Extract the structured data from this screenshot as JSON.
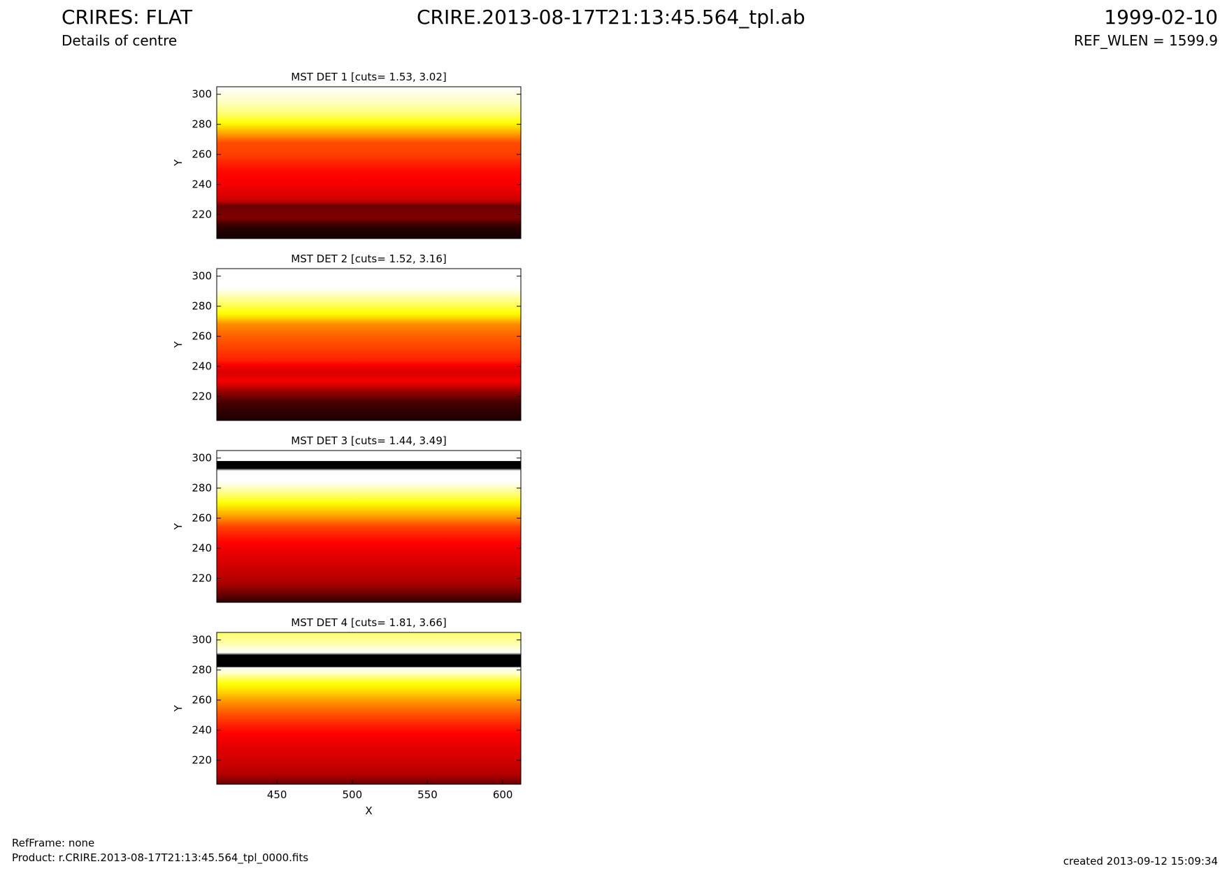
{
  "header": {
    "title": "CRIRES: FLAT",
    "subtitle": "Details of centre",
    "file_name": "CRIRE.2013-08-17T21:13:45.564_tpl.ab",
    "date": "1999-02-10",
    "ref_wlen": "REF_WLEN = 1599.9"
  },
  "footer": {
    "ref_frame": "RefFrame: none",
    "product": "Product: r.CRIRE.2013-08-17T21:13:45.564_tpl_0000.fits",
    "created": "created 2013-09-12 15:09:34"
  },
  "colormap": {
    "name": "hot",
    "stops": [
      "#000000",
      "#b00000",
      "#ff0000",
      "#ff8000",
      "#ffff00",
      "#ffffff"
    ]
  },
  "chart_data": [
    {
      "type": "heatmap",
      "title": "MST DET 1 [cuts= 1.53, 3.02]",
      "xlabel": "",
      "ylabel": "Y",
      "xlim": [
        410,
        612
      ],
      "ylim": [
        204,
        305
      ],
      "xticks": [],
      "yticks": [
        220,
        240,
        260,
        280,
        300
      ],
      "profile": [
        [
          204,
          0.02
        ],
        [
          212,
          0.05
        ],
        [
          218,
          0.15
        ],
        [
          226,
          0.12
        ],
        [
          230,
          0.28
        ],
        [
          240,
          0.38
        ],
        [
          250,
          0.42
        ],
        [
          260,
          0.5
        ],
        [
          268,
          0.52
        ],
        [
          276,
          0.7
        ],
        [
          282,
          0.82
        ],
        [
          288,
          0.9
        ],
        [
          296,
          0.96
        ],
        [
          305,
          1.0
        ]
      ],
      "bands": []
    },
    {
      "type": "heatmap",
      "title": "MST DET 2 [cuts= 1.52, 3.16]",
      "xlabel": "",
      "ylabel": "Y",
      "xlim": [
        410,
        612
      ],
      "ylim": [
        204,
        305
      ],
      "xticks": [],
      "yticks": [
        220,
        240,
        260,
        280,
        300
      ],
      "profile": [
        [
          204,
          0.03
        ],
        [
          216,
          0.08
        ],
        [
          224,
          0.18
        ],
        [
          230,
          0.38
        ],
        [
          236,
          0.3
        ],
        [
          244,
          0.45
        ],
        [
          252,
          0.5
        ],
        [
          260,
          0.55
        ],
        [
          268,
          0.62
        ],
        [
          274,
          0.78
        ],
        [
          280,
          0.86
        ],
        [
          286,
          0.93
        ],
        [
          292,
          1.0
        ],
        [
          305,
          1.0
        ]
      ],
      "bands": []
    },
    {
      "type": "heatmap",
      "title": "MST DET 3 [cuts= 1.44, 3.49]",
      "xlabel": "",
      "ylabel": "Y",
      "xlim": [
        410,
        612
      ],
      "ylim": [
        204,
        305
      ],
      "xticks": [],
      "yticks": [
        220,
        240,
        260,
        280,
        300
      ],
      "profile": [
        [
          204,
          0.05
        ],
        [
          212,
          0.15
        ],
        [
          220,
          0.22
        ],
        [
          230,
          0.3
        ],
        [
          238,
          0.35
        ],
        [
          246,
          0.42
        ],
        [
          254,
          0.5
        ],
        [
          262,
          0.66
        ],
        [
          270,
          0.8
        ],
        [
          278,
          0.92
        ],
        [
          284,
          1.0
        ],
        [
          292,
          1.0
        ],
        [
          305,
          1.0
        ]
      ],
      "bands": [
        [
          293,
          298
        ]
      ]
    },
    {
      "type": "heatmap",
      "title": "MST DET 4 [cuts= 1.81, 3.66]",
      "xlabel": "X",
      "ylabel": "Y",
      "xlim": [
        410,
        612
      ],
      "ylim": [
        204,
        305
      ],
      "xticks": [
        450,
        500,
        550,
        600
      ],
      "yticks": [
        220,
        240,
        260,
        280,
        300
      ],
      "profile": [
        [
          204,
          0.12
        ],
        [
          212,
          0.22
        ],
        [
          220,
          0.28
        ],
        [
          230,
          0.34
        ],
        [
          240,
          0.42
        ],
        [
          250,
          0.52
        ],
        [
          258,
          0.62
        ],
        [
          266,
          0.74
        ],
        [
          272,
          0.82
        ],
        [
          278,
          0.96
        ],
        [
          282,
          1.0
        ],
        [
          292,
          1.0
        ],
        [
          296,
          0.95
        ],
        [
          305,
          0.88
        ]
      ],
      "bands": [
        [
          282,
          290
        ]
      ]
    }
  ]
}
